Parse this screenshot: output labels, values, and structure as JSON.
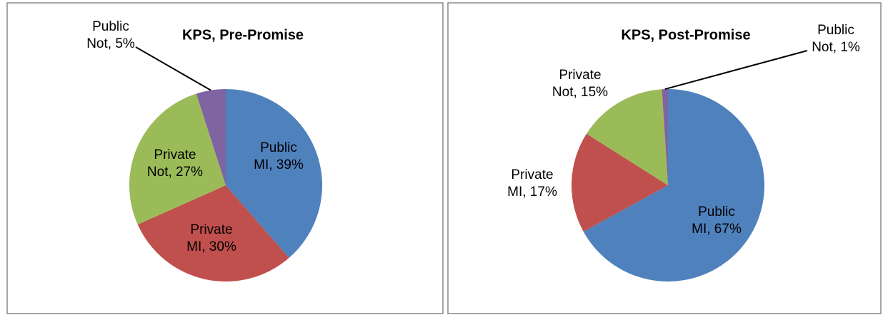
{
  "chart_data": [
    {
      "type": "pie",
      "title": "KPS, Pre-Promise",
      "values": [
        39,
        30,
        27,
        5
      ],
      "value_labels": [
        "Public MI, 39%",
        "Private MI, 30%",
        "Private Not, 27%",
        "Public Not, 5%"
      ],
      "colors": [
        "#4f81bd",
        "#c0504d",
        "#9bbb59",
        "#8064a2"
      ]
    },
    {
      "type": "pie",
      "title": "KPS, Post-Promise",
      "values": [
        67,
        17,
        15,
        1
      ],
      "value_labels": [
        "Public MI, 67%",
        "Private MI, 17%",
        "Private Not, 15%",
        "Public Not, 1%"
      ],
      "colors": [
        "#4f81bd",
        "#c0504d",
        "#9bbb59",
        "#8064a2"
      ]
    }
  ]
}
